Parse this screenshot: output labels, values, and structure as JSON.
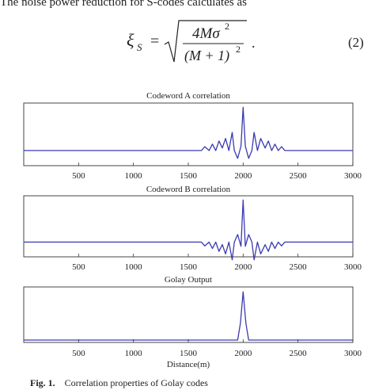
{
  "text": {
    "intro": "The noise power reduction for S-codes calculates as",
    "equation_number": "(2)",
    "caption_label": "Fig. 1.",
    "caption_text": "Correlation properties of Golay codes"
  },
  "equation": {
    "lhs": "ξ",
    "lhs_sub": "S",
    "equals": "=",
    "numerator": "4Mσ",
    "numerator_sup": "2",
    "denominator": "(M + 1)",
    "denominator_sup": "2",
    "trailing": "."
  },
  "chart_data": [
    {
      "type": "line",
      "title": "Codeword A correlation",
      "xlabel": "",
      "xlim": [
        0,
        3000
      ],
      "ylim": [
        -0.35,
        1.1
      ],
      "xticks": [
        "500",
        "1000",
        "1500",
        "2000",
        "2500",
        "3000"
      ],
      "grid": false,
      "series": [
        {
          "color": "#3a3ab0",
          "x": [
            0,
            1600,
            1620,
            1650,
            1690,
            1720,
            1750,
            1780,
            1810,
            1840,
            1870,
            1900,
            1920,
            1950,
            1980,
            2000,
            2020,
            2050,
            2080,
            2100,
            2130,
            2160,
            2200,
            2230,
            2260,
            2290,
            2320,
            2350,
            2380,
            2400,
            3000
          ],
          "y": [
            0,
            0,
            0,
            0.09,
            0.0,
            0.15,
            0.0,
            0.22,
            0.06,
            0.28,
            0.0,
            0.42,
            0.0,
            -0.18,
            0.1,
            1.0,
            0.1,
            -0.18,
            0.0,
            0.42,
            0.0,
            0.28,
            0.06,
            0.22,
            0.0,
            0.15,
            0.0,
            0.09,
            0.0,
            0,
            0
          ]
        }
      ]
    },
    {
      "type": "line",
      "title": "Codeword B correlation",
      "xlabel": "",
      "xlim": [
        0,
        3000
      ],
      "ylim": [
        -0.35,
        1.1
      ],
      "xticks": [
        "500",
        "1000",
        "1500",
        "2000",
        "2500",
        "3000"
      ],
      "grid": false,
      "series": [
        {
          "color": "#3a3ab0",
          "x": [
            0,
            1600,
            1620,
            1650,
            1690,
            1720,
            1750,
            1780,
            1810,
            1840,
            1870,
            1900,
            1920,
            1950,
            1980,
            2000,
            2020,
            2050,
            2080,
            2100,
            2130,
            2160,
            2200,
            2230,
            2260,
            2290,
            2320,
            2350,
            2380,
            2400,
            3000
          ],
          "y": [
            0,
            0,
            0,
            -0.09,
            0.0,
            -0.15,
            0.0,
            -0.22,
            -0.06,
            -0.28,
            0.0,
            -0.42,
            0.0,
            0.18,
            -0.1,
            1.0,
            -0.1,
            0.18,
            0.0,
            -0.42,
            0.0,
            -0.28,
            -0.06,
            -0.22,
            0.0,
            -0.15,
            0.0,
            -0.09,
            0.0,
            0,
            0
          ]
        }
      ]
    },
    {
      "type": "line",
      "title": "Golay Output",
      "xlabel": "Distance(m)",
      "xlim": [
        0,
        3000
      ],
      "ylim": [
        -0.05,
        1.1
      ],
      "xticks": [
        "500",
        "1000",
        "1500",
        "2000",
        "2500",
        "3000"
      ],
      "grid": false,
      "series": [
        {
          "color": "#3a3ab0",
          "x": [
            0,
            1950,
            1975,
            2000,
            2025,
            2050,
            3000
          ],
          "y": [
            0,
            0,
            0.35,
            1.0,
            0.35,
            0,
            0
          ]
        }
      ]
    }
  ]
}
